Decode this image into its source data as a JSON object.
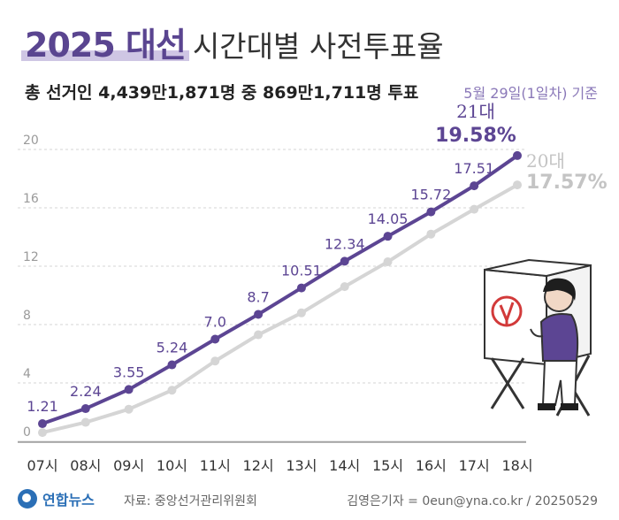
{
  "header": {
    "title_highlight": "2025 대선",
    "title_rest": "시간대별 사전투표율",
    "summary": "총 선거인 4,439만1,871명 중 869만1,711명 투표",
    "basis": "5월 29일(1일차) 기준"
  },
  "footer": {
    "logo": "연합뉴스",
    "source": "자료: 중앙선거관리위원회",
    "credit": "김영은기자 = 0eun@yna.co.kr / 20250529"
  },
  "colors": {
    "series21": "#5c4593",
    "series20": "#d5d5d5",
    "grid": "#d6d6d6",
    "tick": "#9a9a9a",
    "highlightBar": "#cfc6e4"
  },
  "chart_data": {
    "type": "line",
    "categories": [
      "07시",
      "08시",
      "09시",
      "10시",
      "11시",
      "12시",
      "13시",
      "14시",
      "15시",
      "16시",
      "17시",
      "18시"
    ],
    "ylim": [
      0,
      20
    ],
    "yticks": [
      "0",
      "4",
      "8",
      "12",
      "16",
      "20"
    ],
    "grid": true,
    "series": [
      {
        "name": "21대",
        "values": [
          1.21,
          2.24,
          3.55,
          5.24,
          7.0,
          8.7,
          10.51,
          12.34,
          14.05,
          15.72,
          17.51,
          19.58
        ],
        "labels": [
          "1.21",
          "2.24",
          "3.55",
          "5.24",
          "7.0",
          "8.7",
          "10.51",
          "12.34",
          "14.05",
          "15.72",
          "17.51",
          "19.58%"
        ]
      },
      {
        "name": "20대",
        "values": [
          0.6,
          1.3,
          2.2,
          3.5,
          5.5,
          7.3,
          8.8,
          10.6,
          12.3,
          14.2,
          15.9,
          17.57
        ],
        "final_label": "17.57%"
      }
    ]
  }
}
